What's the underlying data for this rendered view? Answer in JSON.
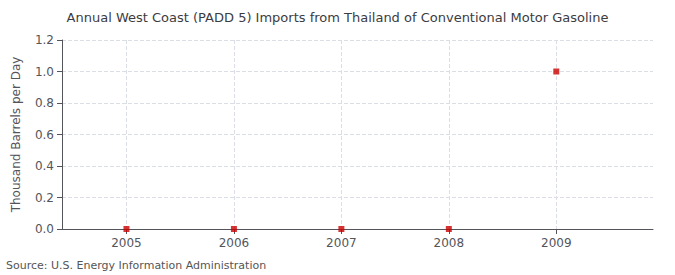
{
  "chart_data": {
    "type": "scatter",
    "title": "Annual West Coast (PADD 5) Imports from Thailand of Conventional Motor Gasoline",
    "ylabel": "Thousand Barrels per Day",
    "annotations": [
      "Source: U.S. Energy Information Administration"
    ],
    "x": [
      2005,
      2006,
      2007,
      2008,
      2009
    ],
    "values": [
      0.0,
      0.0,
      0.0,
      0.0,
      1.0
    ],
    "color": "#cc0000",
    "marker": "square",
    "xlim": [
      2004.4,
      2009.9
    ],
    "xticks": [
      2005,
      2006,
      2007,
      2008,
      2009
    ],
    "ylim": [
      0.0,
      1.2
    ],
    "yticks": [
      {
        "value": 0.0,
        "label": "0.0"
      },
      0.2,
      0.4,
      0.6,
      0.8,
      {
        "value": 1.0,
        "label": "1.0"
      },
      1.2
    ],
    "grid": true
  }
}
